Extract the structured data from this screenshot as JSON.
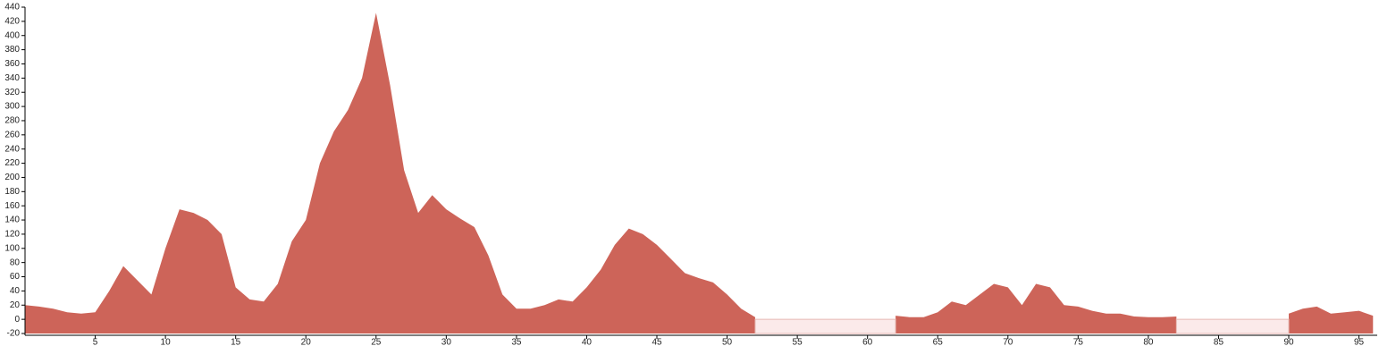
{
  "chart_data": {
    "type": "area",
    "x": [
      0,
      1,
      2,
      3,
      4,
      5,
      6,
      7,
      8,
      9,
      10,
      11,
      12,
      13,
      14,
      15,
      16,
      17,
      18,
      19,
      20,
      21,
      22,
      23,
      24,
      25,
      26,
      27,
      28,
      29,
      30,
      31,
      32,
      33,
      34,
      35,
      36,
      37,
      38,
      39,
      40,
      41,
      42,
      43,
      44,
      45,
      46,
      47,
      48,
      49,
      50,
      51,
      52,
      53,
      54,
      55,
      56,
      57,
      58,
      59,
      60,
      61,
      62,
      63,
      64,
      65,
      66,
      67,
      68,
      69,
      70,
      71,
      72,
      73,
      74,
      75,
      76,
      77,
      78,
      79,
      80,
      81,
      82,
      83,
      84,
      85,
      86,
      87,
      88,
      89,
      90,
      91,
      92,
      93,
      94,
      95,
      96
    ],
    "series": [
      {
        "color": "#cd6459",
        "values": [
          20,
          18,
          15,
          10,
          8,
          10,
          40,
          75,
          55,
          35,
          100,
          155,
          150,
          140,
          120,
          45,
          28,
          25,
          50,
          110,
          140,
          220,
          265,
          295,
          340,
          432,
          330,
          210,
          150,
          175,
          155,
          142,
          130,
          90,
          35,
          15,
          15,
          20,
          28,
          25,
          45,
          70,
          105,
          128,
          120,
          105,
          85,
          65,
          58,
          52,
          35,
          15,
          3,
          null,
          null,
          null,
          null,
          null,
          null,
          null,
          null,
          null,
          5,
          3,
          3,
          10,
          25,
          20,
          35,
          50,
          45,
          20,
          50,
          45,
          20,
          18,
          12,
          8,
          8,
          4,
          3,
          3,
          4,
          null,
          null,
          null,
          null,
          null,
          null,
          null,
          8,
          15,
          18,
          8,
          10,
          12,
          5
        ]
      },
      {
        "color": "#fbeaea",
        "values": [
          null,
          null,
          null,
          null,
          null,
          null,
          null,
          null,
          null,
          null,
          null,
          null,
          null,
          null,
          null,
          null,
          null,
          null,
          null,
          null,
          null,
          null,
          null,
          null,
          null,
          null,
          null,
          null,
          null,
          null,
          null,
          null,
          null,
          null,
          null,
          null,
          null,
          null,
          null,
          null,
          null,
          null,
          null,
          null,
          null,
          null,
          null,
          null,
          null,
          null,
          null,
          null,
          0,
          0,
          0,
          0,
          0,
          0,
          0,
          0,
          0,
          0,
          0,
          null,
          null,
          null,
          null,
          null,
          null,
          null,
          null,
          null,
          null,
          null,
          null,
          null,
          null,
          null,
          null,
          null,
          null,
          null,
          0,
          0,
          0,
          0,
          0,
          0,
          0,
          0,
          0,
          null,
          null,
          null,
          null,
          null,
          null
        ]
      }
    ],
    "xlim": [
      0,
      96.3
    ],
    "xticks": [
      5,
      10,
      15,
      20,
      25,
      30,
      35,
      40,
      45,
      50,
      55,
      60,
      65,
      70,
      75,
      80,
      85,
      90,
      95
    ],
    "ylim": [
      -20,
      440
    ],
    "yticks": [
      -20,
      0,
      20,
      40,
      60,
      80,
      100,
      120,
      140,
      160,
      180,
      200,
      220,
      240,
      260,
      280,
      300,
      320,
      340,
      360,
      380,
      400,
      420,
      440
    ]
  }
}
